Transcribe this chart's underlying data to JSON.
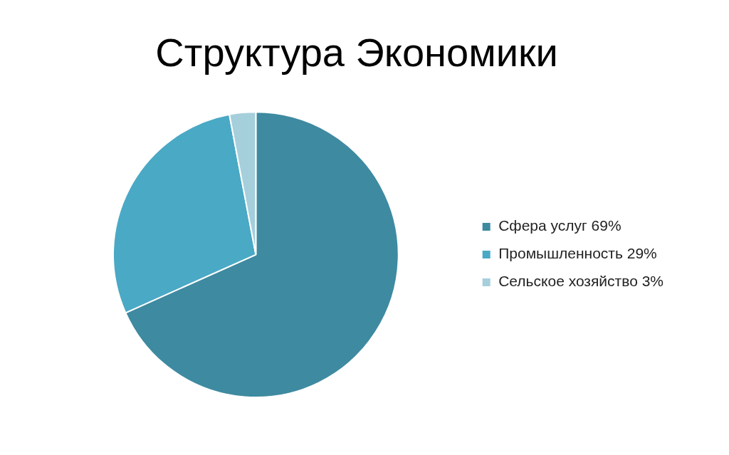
{
  "chart_data": {
    "type": "pie",
    "title": "Структура Экономики",
    "categories": [
      "Сфера услуг 69%",
      "Промышленность 29%",
      "Сельское хозяйство 3%"
    ],
    "values": [
      69,
      29,
      3
    ],
    "colors": [
      "#3e8aa1",
      "#4aa9c5",
      "#a6cfdc"
    ],
    "legend": "right"
  }
}
